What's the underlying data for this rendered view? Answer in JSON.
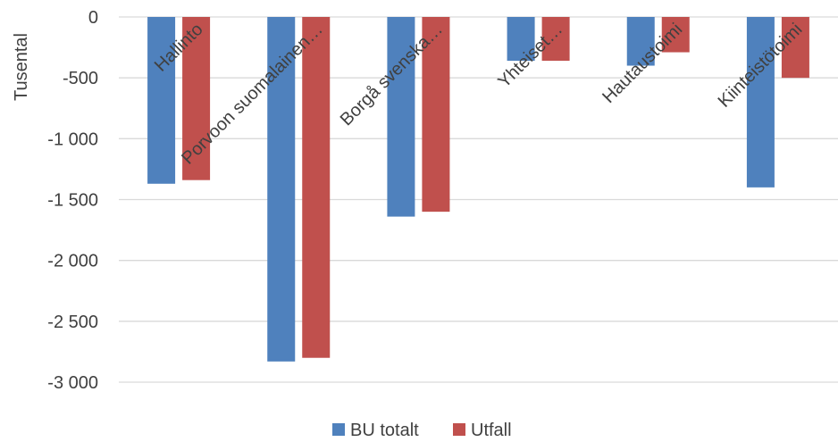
{
  "chart_data": {
    "type": "bar",
    "title": "",
    "xlabel": "",
    "ylabel": "Tusental",
    "categories": [
      "Hallinto",
      "Porvoon suomalainen…",
      "Borgå svenska…",
      "Yhteiset…",
      "Hautaustoimi",
      "Kiinteistötoimi"
    ],
    "series": [
      {
        "name": "BU totalt",
        "color": "#4F81BD",
        "values": [
          -1370,
          -2830,
          -1640,
          -360,
          -400,
          -1400
        ]
      },
      {
        "name": "Utfall",
        "color": "#C0504D",
        "values": [
          -1340,
          -2800,
          -1600,
          -360,
          -290,
          -500
        ]
      }
    ],
    "ylim": [
      -3000,
      0
    ],
    "yticks": [
      0,
      -500,
      -1000,
      -1500,
      -2000,
      -2500,
      -3000
    ],
    "ytick_labels": [
      "0",
      "-500",
      "-1 000",
      "-1 500",
      "-2 000",
      "-2 500",
      "-3 000"
    ],
    "grid": true,
    "legend": "bottom"
  }
}
